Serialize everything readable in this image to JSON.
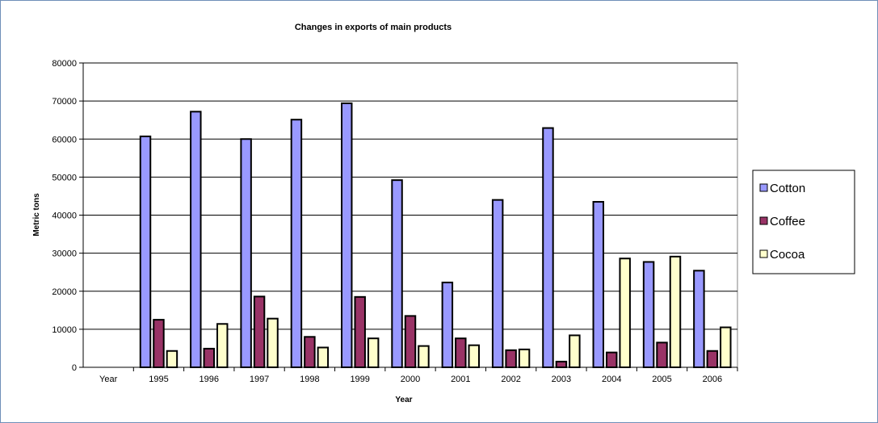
{
  "chart_data": {
    "type": "bar",
    "title": "Changes in exports of main products",
    "xlabel": "Year",
    "ylabel": "Metric tons",
    "ylim": [
      0,
      80000
    ],
    "yticks": [
      0,
      10000,
      20000,
      30000,
      40000,
      50000,
      60000,
      70000,
      80000
    ],
    "categories": [
      "Year",
      "1995",
      "1996",
      "1997",
      "1998",
      "1999",
      "2000",
      "2001",
      "2002",
      "2003",
      "2004",
      "2005",
      "2006"
    ],
    "series": [
      {
        "name": "Cotton",
        "color": "#9999ff",
        "values": [
          null,
          60700,
          67200,
          60000,
          65100,
          69400,
          49200,
          22300,
          44000,
          62900,
          43500,
          27700,
          25400
        ]
      },
      {
        "name": "Coffee",
        "color": "#993366",
        "values": [
          null,
          12500,
          4900,
          18600,
          8000,
          18500,
          13500,
          7600,
          4500,
          1500,
          3900,
          6500,
          4300
        ]
      },
      {
        "name": "Cocoa",
        "color": "#ffffcc",
        "values": [
          null,
          4300,
          11400,
          12800,
          5200,
          7600,
          5600,
          5800,
          4700,
          8400,
          28600,
          29100,
          10500
        ]
      }
    ],
    "grid": true,
    "plot_background": "#ffffff",
    "legend_position": "right"
  }
}
